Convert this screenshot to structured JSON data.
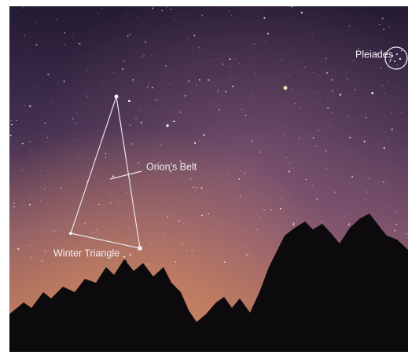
{
  "annotations": {
    "pleiades": "Pleiades",
    "orions_belt": "Orion's Belt",
    "winter_triangle": "Winter Triangle"
  }
}
